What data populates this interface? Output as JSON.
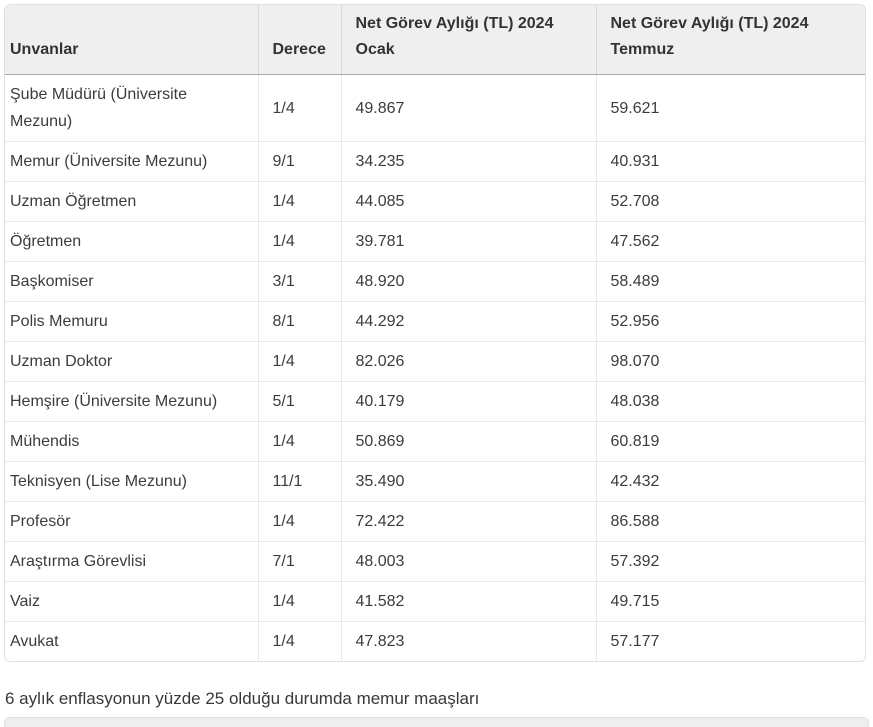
{
  "table": {
    "header": {
      "col_title": "Unvanlar",
      "col_degree": "Derece",
      "col_jan_line1": "Net Görev Aylığı (TL) 2024",
      "col_jan_line2": "Ocak",
      "col_jul_line1": "Net Görev Aylığı (TL) 2024",
      "col_jul_line2": "Temmuz"
    },
    "rows": [
      {
        "title": "Şube Müdürü (Üniversite Mezunu)",
        "degree": "1/4",
        "jan": "49.867",
        "jul": "59.621"
      },
      {
        "title": "Memur (Üniversite Mezunu)",
        "degree": "9/1",
        "jan": "34.235",
        "jul": "40.931"
      },
      {
        "title": "Uzman Öğretmen",
        "degree": "1/4",
        "jan": "44.085",
        "jul": "52.708"
      },
      {
        "title": "Öğretmen",
        "degree": "1/4",
        "jan": "39.781",
        "jul": "47.562"
      },
      {
        "title": "Başkomiser",
        "degree": "3/1",
        "jan": "48.920",
        "jul": "58.489"
      },
      {
        "title": "Polis Memuru",
        "degree": "8/1",
        "jan": "44.292",
        "jul": "52.956"
      },
      {
        "title": "Uzman Doktor",
        "degree": "1/4",
        "jan": "82.026",
        "jul": "98.070"
      },
      {
        "title": "Hemşire (Üniversite Mezunu)",
        "degree": "5/1",
        "jan": "40.179",
        "jul": "48.038"
      },
      {
        "title": "Mühendis",
        "degree": "1/4",
        "jan": "50.869",
        "jul": "60.819"
      },
      {
        "title": "Teknisyen (Lise Mezunu)",
        "degree": "11/1",
        "jan": "35.490",
        "jul": "42.432"
      },
      {
        "title": "Profesör",
        "degree": "1/4",
        "jan": "72.422",
        "jul": "86.588"
      },
      {
        "title": "Araştırma Görevlisi",
        "degree": "7/1",
        "jan": "48.003",
        "jul": "57.392"
      },
      {
        "title": "Vaiz",
        "degree": "1/4",
        "jan": "41.582",
        "jul": "49.715"
      },
      {
        "title": "Avukat",
        "degree": "1/4",
        "jan": "47.823",
        "jul": "57.177"
      }
    ]
  },
  "caption": "6 aylık enflasyonun yüzde 25 olduğu durumda memur maaşları",
  "colors": {
    "header_bg": "#efefef",
    "header_border": "#a8a8a8",
    "cell_border": "#e9e9e7",
    "outer_border": "#e0e0e0",
    "text": "#3c3c3c"
  }
}
